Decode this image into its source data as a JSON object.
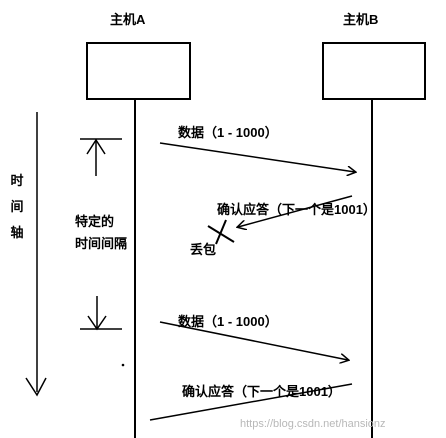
{
  "host_a": {
    "label": "主机A"
  },
  "host_b": {
    "label": "主机B"
  },
  "time_axis": {
    "label": "时间轴"
  },
  "interval": {
    "label_line1": "特定的",
    "label_line2": "时间间隔"
  },
  "messages": {
    "data_first": "数据（1 - 1000）",
    "ack_first": "确认应答（下一个是1001）",
    "packet_lost": "丢包",
    "data_resend": "数据（1 - 1000）",
    "ack_resend": "确认应答（下一个是1001）"
  },
  "watermark": "https://blog.csdn.net/hansionz",
  "colors": {
    "ink": "#000000",
    "watermark": "#b8b8b8",
    "background": "#ffffff"
  }
}
